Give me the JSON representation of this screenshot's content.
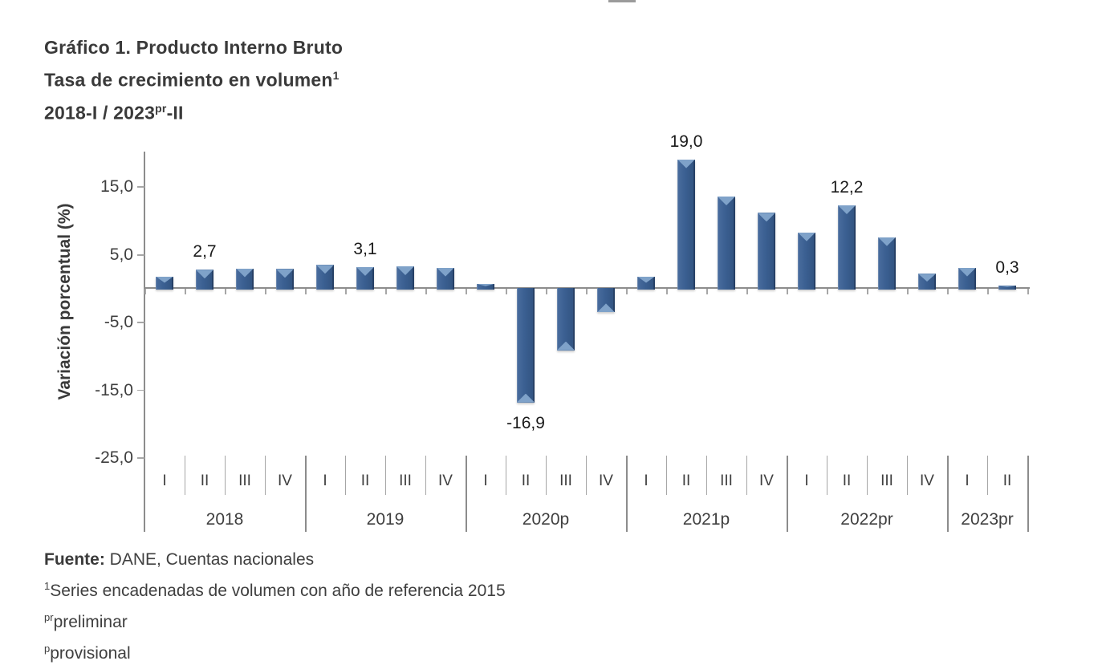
{
  "header": {
    "line1": "Gráfico 1. Producto Interno Bruto",
    "line2_text": "Tasa de crecimiento en volumen",
    "line2_sup": "1",
    "line3_pre": "2018-I / 2023",
    "line3_sup": "pr",
    "line3_post": "-II"
  },
  "chart_data": {
    "type": "bar",
    "title": "Gráfico 1. Producto Interno Bruto",
    "subtitle": "Tasa de crecimiento en volumen",
    "period": "2018-I / 2023pr-II",
    "ylabel": "Variación porcentual (%)",
    "ylim": [
      -25,
      20
    ],
    "grid": false,
    "legend": false,
    "decimal_separator": ",",
    "bar_color": "#3a5f91",
    "bar_bevel_color": "#7fa2c9",
    "axis_color": "#8c8c8c",
    "y_ticks": [
      {
        "label": "15,0",
        "value": 15
      },
      {
        "label": "5,0",
        "value": 5
      },
      {
        "label": "-5,0",
        "value": -5
      },
      {
        "label": "-15,0",
        "value": -15
      },
      {
        "label": "-25,0",
        "value": -25
      }
    ],
    "groups": [
      {
        "year": "2018",
        "quarters": [
          {
            "q": "I",
            "value": 1.7,
            "label": null
          },
          {
            "q": "II",
            "value": 2.7,
            "label": "2,7"
          },
          {
            "q": "III",
            "value": 2.9,
            "label": null
          },
          {
            "q": "IV",
            "value": 2.8,
            "label": null
          }
        ]
      },
      {
        "year": "2019",
        "quarters": [
          {
            "q": "I",
            "value": 3.4,
            "label": null
          },
          {
            "q": "II",
            "value": 3.1,
            "label": "3,1"
          },
          {
            "q": "III",
            "value": 3.2,
            "label": null
          },
          {
            "q": "IV",
            "value": 3.0,
            "label": null
          }
        ]
      },
      {
        "year": "2020p",
        "quarters": [
          {
            "q": "I",
            "value": 0.6,
            "label": null
          },
          {
            "q": "II",
            "value": -16.9,
            "label": "-16,9"
          },
          {
            "q": "III",
            "value": -9.2,
            "label": null
          },
          {
            "q": "IV",
            "value": -3.6,
            "label": null
          }
        ]
      },
      {
        "year": "2021p",
        "quarters": [
          {
            "q": "I",
            "value": 1.7,
            "label": null
          },
          {
            "q": "II",
            "value": 19.0,
            "label": "19,0"
          },
          {
            "q": "III",
            "value": 13.5,
            "label": null
          },
          {
            "q": "IV",
            "value": 11.1,
            "label": null
          }
        ]
      },
      {
        "year": "2022pr",
        "quarters": [
          {
            "q": "I",
            "value": 8.2,
            "label": null
          },
          {
            "q": "II",
            "value": 12.2,
            "label": "12,2"
          },
          {
            "q": "III",
            "value": 7.5,
            "label": null
          },
          {
            "q": "IV",
            "value": 2.1,
            "label": null
          }
        ]
      },
      {
        "year": "2023pr",
        "quarters": [
          {
            "q": "I",
            "value": 3.0,
            "label": null
          },
          {
            "q": "II",
            "value": 0.3,
            "label": "0,3"
          }
        ]
      }
    ]
  },
  "footer": {
    "source_label": "Fuente:",
    "source_text": " DANE, Cuentas nacionales",
    "note1_sup": "1",
    "note1_text": "Series encadenadas de volumen con año de referencia 2015",
    "note2_sup": "pr",
    "note2_text": "preliminar",
    "note3_sup": "p",
    "note3_text": "provisional"
  }
}
